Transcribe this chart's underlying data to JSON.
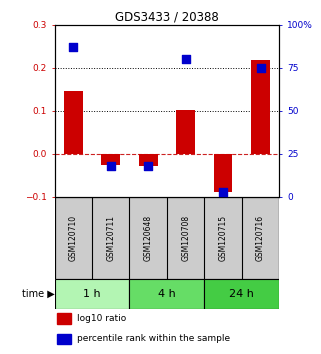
{
  "title": "GDS3433 / 20388",
  "samples": [
    "GSM120710",
    "GSM120711",
    "GSM120648",
    "GSM120708",
    "GSM120715",
    "GSM120716"
  ],
  "log10_ratio": [
    0.145,
    -0.025,
    -0.028,
    0.102,
    -0.088,
    0.218
  ],
  "percentile_rank": [
    87,
    18,
    18,
    80,
    3,
    75
  ],
  "groups": [
    {
      "label": "1 h",
      "indices": [
        0,
        1
      ],
      "color": "#b3f5b3"
    },
    {
      "label": "4 h",
      "indices": [
        2,
        3
      ],
      "color": "#66dd66"
    },
    {
      "label": "24 h",
      "indices": [
        4,
        5
      ],
      "color": "#44cc44"
    }
  ],
  "bar_color": "#cc0000",
  "dot_color": "#0000cc",
  "left_ylim": [
    -0.1,
    0.3
  ],
  "right_ylim": [
    0,
    100
  ],
  "left_yticks": [
    -0.1,
    0,
    0.1,
    0.2,
    0.3
  ],
  "right_yticks": [
    0,
    25,
    50,
    75,
    100
  ],
  "right_yticklabels": [
    "0",
    "25",
    "50",
    "75",
    "100%"
  ],
  "hlines": [
    0.1,
    0.2
  ],
  "zero_line": 0.0,
  "bar_width": 0.5,
  "dot_size": 30,
  "legend_items": [
    {
      "color": "#cc0000",
      "label": "log10 ratio"
    },
    {
      "color": "#0000cc",
      "label": "percentile rank within the sample"
    }
  ],
  "sample_box_color": "#cccccc",
  "fig_width": 3.21,
  "fig_height": 3.54,
  "dpi": 100
}
